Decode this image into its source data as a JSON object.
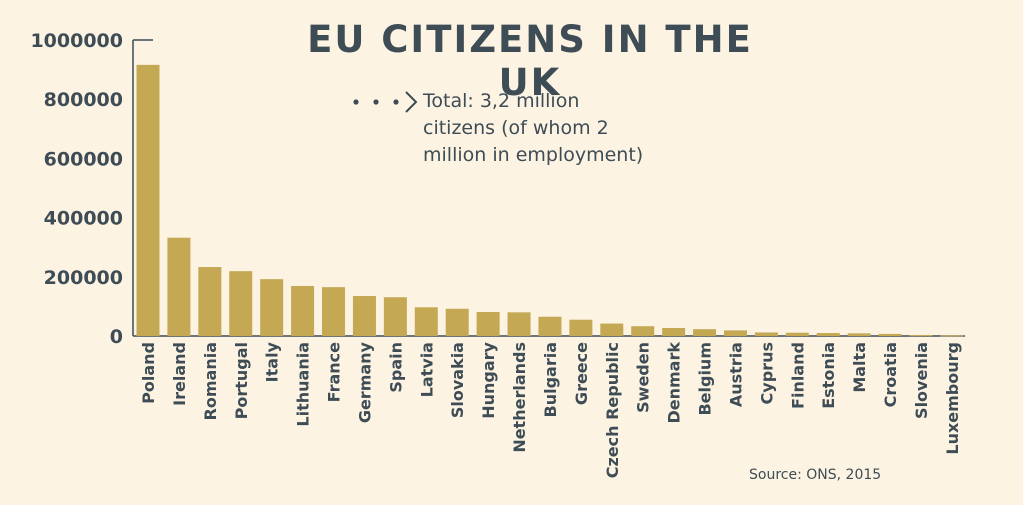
{
  "chart_data": {
    "type": "bar",
    "title": "EU CITIZENS IN THE UK",
    "annotation": "Total: 3,2 million citizens (of whom 2 million in employment)",
    "source": "Source: ONS, 2015",
    "categories": [
      "Poland",
      "Ireland",
      "Romania",
      "Portugal",
      "Italy",
      "Lithuania",
      "France",
      "Germany",
      "Spain",
      "Latvia",
      "Slovakia",
      "Hungary",
      "Netherlands",
      "Bulgaria",
      "Greece",
      "Czech Republic",
      "Sweden",
      "Denmark",
      "Belgium",
      "Austria",
      "Cyprus",
      "Finland",
      "Estonia",
      "Malta",
      "Croatia",
      "Slovenia",
      "Luxembourg"
    ],
    "values": [
      916000,
      332000,
      233000,
      219000,
      192000,
      169000,
      165000,
      135000,
      131000,
      97000,
      92000,
      81000,
      80000,
      65000,
      55000,
      42000,
      33000,
      27000,
      23000,
      19000,
      12000,
      11000,
      10000,
      9000,
      7000,
      3000,
      2000
    ],
    "yticks": [
      "0",
      "200000",
      "400000",
      "600000",
      "800000",
      "1000000"
    ],
    "ylim": [
      0,
      1000000
    ],
    "bar_color": "#c4a853",
    "axis_color": "#3d4c55",
    "text_color": "#3d4c55",
    "background": "#fdf3e3",
    "grid": false
  }
}
